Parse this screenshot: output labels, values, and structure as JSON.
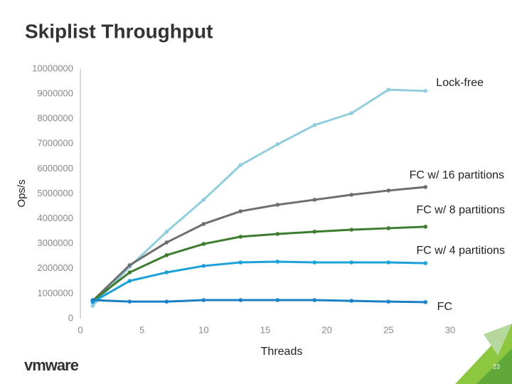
{
  "chart_data": {
    "type": "line",
    "title": "Skiplist Throughput",
    "x_label": "Threads",
    "y_label": "Ops/s",
    "x": [
      1,
      4,
      7,
      10,
      13,
      16,
      19,
      22,
      25,
      28
    ],
    "series": [
      {
        "name": "Lock-free",
        "color": "#92cddc",
        "values": [
          510000,
          2080000,
          3480000,
          4760000,
          6150000,
          6980000,
          7750000,
          8230000,
          9170000,
          9120000
        ]
      },
      {
        "name": "FC w/ 16 partitions",
        "color": "#6d6e71",
        "values": [
          710000,
          2140000,
          3050000,
          3790000,
          4300000,
          4560000,
          4760000,
          4960000,
          5130000,
          5270000
        ]
      },
      {
        "name": "FC w/ 8 partitions",
        "color": "#3e7c2f",
        "values": [
          710000,
          1850000,
          2540000,
          2990000,
          3280000,
          3390000,
          3480000,
          3560000,
          3620000,
          3680000
        ]
      },
      {
        "name": "FC w/ 4 partitions",
        "color": "#1ba0d8",
        "values": [
          660000,
          1510000,
          1850000,
          2110000,
          2250000,
          2280000,
          2250000,
          2250000,
          2250000,
          2220000
        ]
      },
      {
        "name": "FC",
        "color": "#1a7fc4",
        "values": [
          740000,
          680000,
          680000,
          740000,
          740000,
          740000,
          740000,
          710000,
          680000,
          660000
        ]
      }
    ],
    "xlim": [
      0,
      30
    ],
    "xticks": [
      0,
      5,
      10,
      15,
      20,
      25,
      30
    ],
    "ylim": [
      0,
      10000000
    ],
    "yticks": [
      0,
      1000000,
      2000000,
      3000000,
      4000000,
      5000000,
      6000000,
      7000000,
      8000000,
      9000000,
      10000000
    ],
    "grid": false
  },
  "slide": {
    "logo": "vmware",
    "page_number": "23"
  }
}
